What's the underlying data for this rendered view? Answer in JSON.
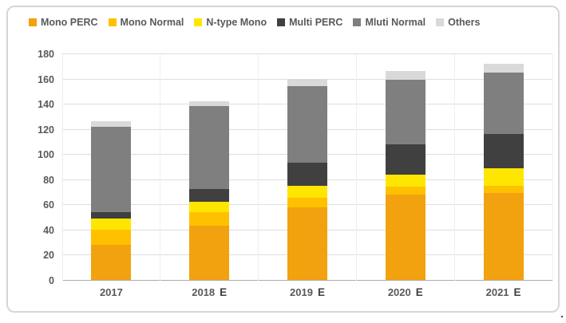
{
  "chart_data": {
    "type": "bar",
    "stacked": true,
    "title": "",
    "categories": [
      "2017",
      "2018",
      "2019",
      "2020",
      "2021"
    ],
    "estimated": [
      false,
      true,
      true,
      true,
      true
    ],
    "estimate_suffix": "E",
    "series": [
      {
        "name": "Mono PERC",
        "color": "#F2A20E",
        "values": [
          28,
          43,
          58,
          68,
          69
        ]
      },
      {
        "name": "Mono Normal",
        "color": "#FFC000",
        "values": [
          12,
          11,
          7,
          6,
          6
        ]
      },
      {
        "name": "N-type Mono",
        "color": "#FFE600",
        "values": [
          9,
          8,
          10,
          10,
          14
        ]
      },
      {
        "name": "Multi PERC",
        "color": "#404040",
        "values": [
          5,
          10,
          18,
          24,
          27
        ]
      },
      {
        "name": "Mluti Normal",
        "color": "#7F7F7F",
        "values": [
          68,
          66,
          61,
          51,
          49
        ]
      },
      {
        "name": "Others",
        "color": "#D9D9D9",
        "values": [
          4,
          4,
          6,
          7,
          7
        ]
      }
    ],
    "totals": [
      126,
      142,
      160,
      166,
      172
    ],
    "ylim": [
      0,
      180
    ],
    "ytick_step": 20,
    "yticks": [
      0,
      20,
      40,
      60,
      80,
      100,
      120,
      140,
      160,
      180
    ],
    "grid": true,
    "legend_position": "top",
    "xlabel": "",
    "ylabel": ""
  },
  "footer_dot": ".",
  "colors": {
    "axis_text": "#595959",
    "gridline": "#DEDEDE",
    "baseline": "#ABABAB",
    "frame_border": "#D6D6D6",
    "background": "#FFFFFF"
  }
}
